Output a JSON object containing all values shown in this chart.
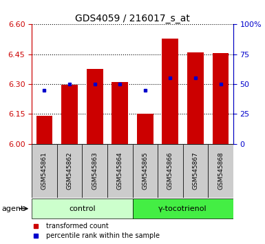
{
  "title": "GDS4059 / 216017_s_at",
  "samples": [
    "GSM545861",
    "GSM545862",
    "GSM545863",
    "GSM545864",
    "GSM545865",
    "GSM545866",
    "GSM545867",
    "GSM545868"
  ],
  "red_values": [
    6.141,
    6.298,
    6.375,
    6.312,
    6.152,
    6.528,
    6.458,
    6.455
  ],
  "blue_values": [
    45,
    50,
    50,
    50,
    45,
    55,
    55,
    50
  ],
  "ymin": 6.0,
  "ymax": 6.6,
  "yticks_left": [
    6.0,
    6.15,
    6.3,
    6.45,
    6.6
  ],
  "yticks_right": [
    0,
    25,
    50,
    75,
    100
  ],
  "bar_color": "#cc0000",
  "dot_color": "#0000cc",
  "bar_width": 0.65,
  "groups": [
    {
      "label": "control",
      "start": 0,
      "end": 4,
      "color": "#ccffcc"
    },
    {
      "label": "γ-tocotrienol",
      "start": 4,
      "end": 8,
      "color": "#44ee44"
    }
  ],
  "sample_box_color": "#cccccc",
  "agent_label": "agent",
  "legend_red": "transformed count",
  "legend_blue": "percentile rank within the sample",
  "title_fontsize": 10,
  "axis_label_color_left": "#cc0000",
  "axis_label_color_right": "#0000cc",
  "tick_fontsize": 8,
  "sample_fontsize": 6.5
}
